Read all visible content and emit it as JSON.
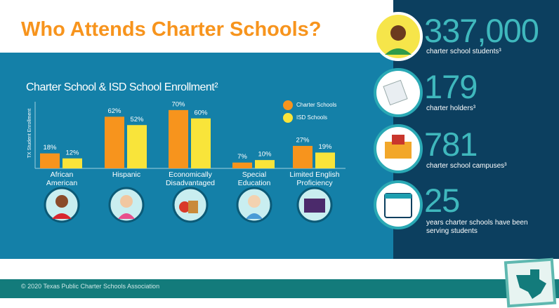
{
  "header": {
    "title": "Who Attends Charter Schools?"
  },
  "chart_data": {
    "type": "bar",
    "title": "Charter School & ISD School Enrollment²",
    "y_label": "TX Student Enrollment",
    "categories": [
      "African American",
      "Hispanic",
      "Economically Disadvantaged",
      "Special Education",
      "Limited English Proficiency"
    ],
    "series": [
      {
        "name": "Charter Schools",
        "color": "#f7941d",
        "values": [
          18,
          62,
          70,
          7,
          27
        ],
        "value_labels": [
          "18%",
          "62%",
          "70%",
          "7%",
          "27%"
        ]
      },
      {
        "name": "ISD Schools",
        "color": "#f9e43a",
        "values": [
          12,
          52,
          60,
          10,
          19
        ],
        "value_labels": [
          "12%",
          "52%",
          "60%",
          "10%",
          "19%"
        ]
      }
    ],
    "ylim": [
      0,
      80
    ]
  },
  "stats": [
    {
      "value": "337,000",
      "label": "charter school students³"
    },
    {
      "value": "179",
      "label": "charter holders³"
    },
    {
      "value": "781",
      "label": "charter school campuses³"
    },
    {
      "value": "25",
      "label": "years charter schools have been serving students"
    }
  ],
  "footer": {
    "copyright": "© 2020 Texas Public Charter Schools Association"
  }
}
